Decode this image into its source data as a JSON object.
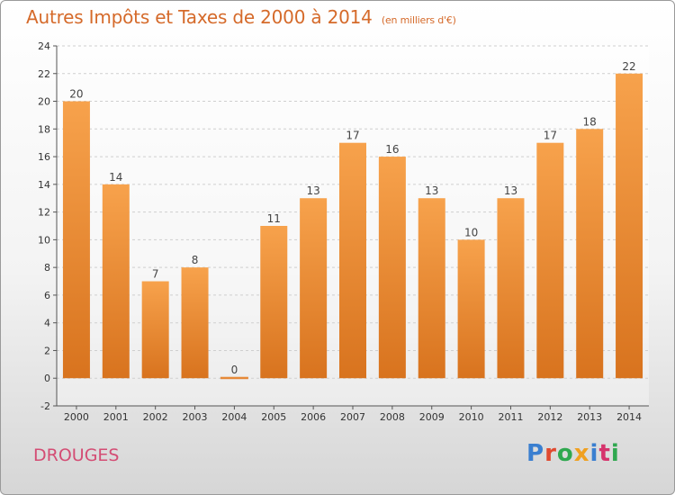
{
  "chart_data": {
    "type": "bar",
    "title": "Autres Impôts et Taxes de 2000 à 2014",
    "unit": "(en milliers d'€)",
    "categories": [
      "2000",
      "2001",
      "2002",
      "2003",
      "2004",
      "2005",
      "2006",
      "2007",
      "2008",
      "2009",
      "2010",
      "2011",
      "2012",
      "2013",
      "2014"
    ],
    "values": [
      20,
      14,
      7,
      8,
      0,
      11,
      13,
      17,
      16,
      13,
      10,
      13,
      17,
      18,
      22
    ],
    "ylim": [
      -2,
      24
    ],
    "yticks": [
      -2,
      0,
      2,
      4,
      6,
      8,
      10,
      12,
      14,
      16,
      18,
      20,
      22,
      24
    ],
    "grid": true,
    "bar_color": "#f29a45"
  },
  "footer": {
    "place": "DROUGES",
    "logo": "Proxiti"
  },
  "colors": {
    "title": "#d56a2a",
    "place": "#d44d74"
  }
}
